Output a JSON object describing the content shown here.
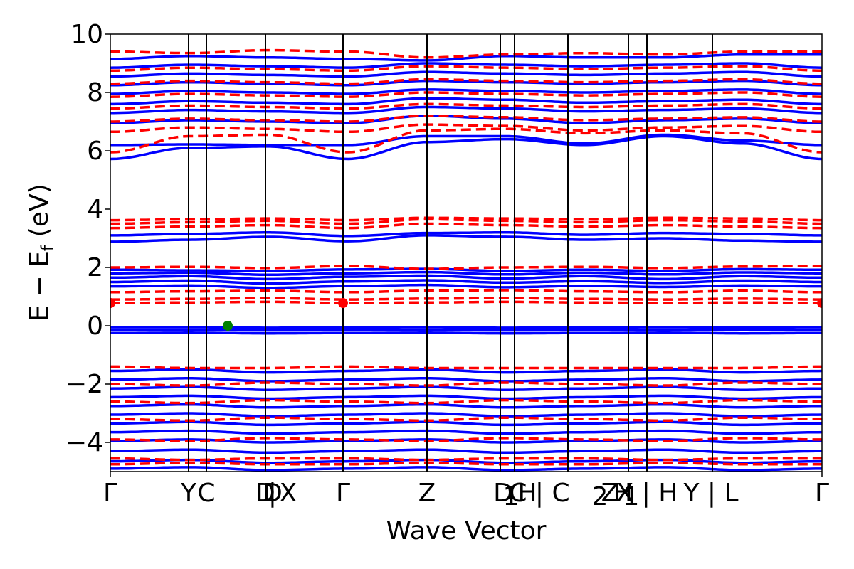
{
  "chart_data": {
    "type": "line",
    "xlabel": "Wave Vector",
    "ylabel_main": "E − E",
    "ylabel_sub": "f",
    "ylabel_tail": " (eV)",
    "ylim": [
      -5,
      10
    ],
    "yticks": [
      -4,
      -2,
      0,
      2,
      4,
      6,
      8,
      10
    ],
    "ytick_labels": [
      "−4",
      "−2",
      "0",
      "2",
      "4",
      "6",
      "8",
      "10"
    ],
    "xlim": [
      0,
      100
    ],
    "kpoint_labels": [
      {
        "x": 0.0,
        "text": "Γ"
      },
      {
        "x": 11.0,
        "text": "Y"
      },
      {
        "x": 13.5,
        "text": "C"
      },
      {
        "x": 21.8,
        "text": "D"
      },
      {
        "x": 22.8,
        "text": "D"
      },
      {
        "x": 22.8,
        "text": "|"
      },
      {
        "x": 25.0,
        "text": "X"
      },
      {
        "x": 32.7,
        "text": "Γ"
      },
      {
        "x": 44.5,
        "text": "Z"
      },
      {
        "x": 55.2,
        "text": "D"
      },
      {
        "x": 56.3,
        "text": "1"
      },
      {
        "x": 58.6,
        "text": "H"
      },
      {
        "x": 60.3,
        "text": "C | C"
      },
      {
        "x": 68.8,
        "text": "2"
      },
      {
        "x": 70.2,
        "text": "Z"
      },
      {
        "x": 72.0,
        "text": "H"
      },
      {
        "x": 73.2,
        "text": "1"
      },
      {
        "x": 75.4,
        "text": "X | H"
      },
      {
        "x": 84.4,
        "text": "Y | L"
      },
      {
        "x": 100.0,
        "text": "Γ"
      }
    ],
    "kpoint_lines": [
      11.0,
      13.5,
      21.8,
      32.7,
      44.5,
      54.8,
      56.8,
      64.3,
      72.8,
      75.4,
      84.6
    ],
    "series": [
      {
        "color": "#0000ff",
        "style": "solid",
        "bands": [
          [
            -0.05,
            -0.05,
            -0.07,
            -0.06,
            -0.05,
            -0.07,
            -0.06,
            -0.05,
            -0.06,
            -0.05
          ],
          [
            -0.15,
            -0.14,
            -0.16,
            -0.15,
            -0.14,
            -0.16,
            -0.15,
            -0.15,
            -0.14,
            -0.15
          ],
          [
            -0.25,
            -0.24,
            -0.26,
            -0.25,
            -0.24,
            -0.26,
            -0.25,
            -0.24,
            -0.26,
            -0.25
          ],
          [
            1.35,
            1.38,
            1.3,
            1.36,
            1.4,
            1.32,
            1.37,
            1.33,
            1.38,
            1.35
          ],
          [
            1.5,
            1.55,
            1.45,
            1.52,
            1.56,
            1.48,
            1.53,
            1.47,
            1.55,
            1.5
          ],
          [
            1.65,
            1.7,
            1.6,
            1.68,
            1.72,
            1.62,
            1.7,
            1.6,
            1.7,
            1.65
          ],
          [
            1.8,
            1.82,
            1.75,
            1.8,
            1.84,
            1.76,
            1.82,
            1.76,
            1.83,
            1.8
          ],
          [
            1.92,
            1.9,
            1.88,
            1.93,
            1.95,
            1.88,
            1.92,
            1.88,
            1.94,
            1.92
          ],
          [
            2.88,
            2.95,
            3.05,
            2.9,
            3.1,
            3.05,
            2.95,
            3.0,
            2.92,
            2.88
          ],
          [
            3.1,
            3.15,
            3.2,
            3.08,
            3.18,
            3.2,
            3.12,
            3.18,
            3.15,
            3.1
          ],
          [
            5.72,
            6.1,
            6.15,
            5.72,
            6.3,
            6.4,
            6.2,
            6.5,
            6.25,
            5.72
          ],
          [
            6.2,
            6.22,
            6.2,
            6.2,
            6.5,
            6.5,
            6.25,
            6.55,
            6.35,
            6.2
          ],
          [
            6.95,
            7.05,
            7.0,
            6.95,
            7.2,
            7.1,
            6.95,
            7.05,
            7.1,
            6.95
          ],
          [
            7.3,
            7.4,
            7.35,
            7.3,
            7.5,
            7.45,
            7.35,
            7.4,
            7.45,
            7.3
          ],
          [
            7.6,
            7.7,
            7.65,
            7.6,
            7.8,
            7.75,
            7.65,
            7.7,
            7.75,
            7.6
          ],
          [
            7.95,
            8.05,
            8.0,
            7.95,
            8.1,
            8.05,
            8.0,
            8.05,
            8.1,
            7.95
          ],
          [
            8.25,
            8.35,
            8.3,
            8.25,
            8.4,
            8.35,
            8.3,
            8.35,
            8.4,
            8.25
          ],
          [
            8.55,
            8.65,
            8.6,
            8.55,
            8.7,
            8.65,
            8.6,
            8.65,
            8.7,
            8.55
          ],
          [
            8.85,
            8.95,
            8.9,
            8.85,
            9.0,
            8.95,
            8.9,
            8.95,
            9.0,
            8.85
          ],
          [
            9.15,
            9.25,
            9.2,
            9.15,
            9.1,
            9.25,
            9.2,
            9.2,
            9.3,
            9.3
          ],
          [
            -1.55,
            -1.5,
            -1.6,
            -1.55,
            -1.5,
            -1.6,
            -1.55,
            -1.5,
            -1.6,
            -1.55
          ],
          [
            -1.85,
            -1.8,
            -1.9,
            -1.85,
            -1.8,
            -1.9,
            -1.85,
            -1.8,
            -1.9,
            -1.85
          ],
          [
            -2.15,
            -2.1,
            -2.2,
            -2.15,
            -2.1,
            -2.2,
            -2.15,
            -2.1,
            -2.2,
            -2.15
          ],
          [
            -2.45,
            -2.4,
            -2.5,
            -2.45,
            -2.4,
            -2.5,
            -2.45,
            -2.4,
            -2.5,
            -2.45
          ],
          [
            -2.75,
            -2.7,
            -2.8,
            -2.75,
            -2.7,
            -2.8,
            -2.75,
            -2.7,
            -2.8,
            -2.75
          ],
          [
            -3.05,
            -3.0,
            -3.1,
            -3.05,
            -3.0,
            -3.1,
            -3.05,
            -3.0,
            -3.1,
            -3.05
          ],
          [
            -3.35,
            -3.3,
            -3.4,
            -3.35,
            -3.3,
            -3.4,
            -3.35,
            -3.3,
            -3.4,
            -3.35
          ],
          [
            -3.65,
            -3.6,
            -3.7,
            -3.65,
            -3.6,
            -3.7,
            -3.65,
            -3.6,
            -3.7,
            -3.65
          ],
          [
            -3.95,
            -3.9,
            -4.0,
            -3.95,
            -3.9,
            -4.0,
            -3.95,
            -3.9,
            -4.0,
            -3.95
          ],
          [
            -4.3,
            -4.25,
            -4.35,
            -4.3,
            -4.25,
            -4.35,
            -4.3,
            -4.25,
            -4.35,
            -4.3
          ],
          [
            -4.65,
            -4.6,
            -4.7,
            -4.65,
            -4.6,
            -4.7,
            -4.65,
            -4.6,
            -4.7,
            -4.65
          ],
          [
            -4.9,
            -4.85,
            -4.95,
            -4.9,
            -4.85,
            -4.95,
            -4.9,
            -4.85,
            -4.95,
            -4.9
          ]
        ]
      },
      {
        "color": "#ff0000",
        "style": "dashed",
        "bands": [
          [
            0.78,
            0.8,
            0.82,
            0.78,
            0.8,
            0.82,
            0.8,
            0.78,
            0.8,
            0.78
          ],
          [
            0.9,
            0.92,
            0.95,
            0.9,
            0.93,
            0.95,
            0.92,
            0.9,
            0.93,
            0.9
          ],
          [
            1.15,
            1.18,
            1.2,
            1.15,
            1.2,
            1.22,
            1.18,
            1.15,
            1.2,
            1.15
          ],
          [
            2.0,
            2.02,
            1.98,
            2.05,
            1.95,
            2.0,
            2.02,
            1.98,
            2.03,
            2.05
          ],
          [
            3.35,
            3.4,
            3.45,
            3.35,
            3.5,
            3.45,
            3.4,
            3.45,
            3.4,
            3.35
          ],
          [
            3.5,
            3.55,
            3.6,
            3.5,
            3.65,
            3.6,
            3.55,
            3.62,
            3.58,
            3.5
          ],
          [
            3.62,
            3.65,
            3.68,
            3.62,
            3.7,
            3.68,
            3.65,
            3.7,
            3.68,
            3.62
          ],
          [
            5.95,
            6.5,
            6.55,
            5.95,
            6.7,
            6.75,
            6.6,
            6.7,
            6.6,
            5.95
          ],
          [
            6.65,
            6.8,
            6.75,
            6.65,
            6.9,
            6.85,
            6.7,
            6.8,
            6.85,
            6.65
          ],
          [
            7.0,
            7.1,
            7.05,
            7.0,
            7.2,
            7.15,
            7.05,
            7.1,
            7.15,
            7.0
          ],
          [
            7.45,
            7.55,
            7.5,
            7.45,
            7.6,
            7.55,
            7.5,
            7.55,
            7.6,
            7.45
          ],
          [
            7.85,
            7.95,
            7.9,
            7.85,
            8.0,
            7.95,
            7.9,
            7.95,
            8.0,
            7.85
          ],
          [
            8.3,
            8.4,
            8.35,
            8.3,
            8.45,
            8.4,
            8.35,
            8.4,
            8.45,
            8.3
          ],
          [
            8.75,
            8.85,
            8.8,
            8.75,
            8.9,
            8.85,
            8.8,
            8.85,
            8.9,
            8.75
          ],
          [
            9.4,
            9.35,
            9.45,
            9.4,
            9.2,
            9.3,
            9.35,
            9.3,
            9.4,
            9.4
          ],
          [
            -1.4,
            -1.45,
            -1.45,
            -1.4,
            -1.45,
            -1.45,
            -1.45,
            -1.45,
            -1.45,
            -1.4
          ],
          [
            -2.0,
            -2.05,
            -1.95,
            -2.0,
            -2.05,
            -1.95,
            -2.0,
            -2.05,
            -1.95,
            -2.0
          ],
          [
            -2.6,
            -2.65,
            -2.55,
            -2.6,
            -2.65,
            -2.55,
            -2.6,
            -2.65,
            -2.55,
            -2.6
          ],
          [
            -3.2,
            -3.25,
            -3.15,
            -3.2,
            -3.25,
            -3.15,
            -3.2,
            -3.25,
            -3.15,
            -3.2
          ],
          [
            -3.9,
            -3.95,
            -3.85,
            -3.9,
            -3.95,
            -3.85,
            -3.9,
            -3.95,
            -3.85,
            -3.9
          ],
          [
            -4.55,
            -4.6,
            -4.55,
            -4.55,
            -4.6,
            -4.55,
            -4.55,
            -4.6,
            -4.55,
            -4.55
          ],
          [
            -4.75,
            -4.7,
            -4.75,
            -4.75,
            -4.7,
            -4.75,
            -4.75,
            -4.7,
            -4.75,
            -4.75
          ]
        ]
      }
    ],
    "markers": [
      {
        "x": 0.0,
        "y": 0.78,
        "color": "#ff0000"
      },
      {
        "x": 32.7,
        "y": 0.78,
        "color": "#ff0000"
      },
      {
        "x": 100.0,
        "y": 0.78,
        "color": "#ff0000"
      },
      {
        "x": 16.5,
        "y": 0.0,
        "color": "#008000"
      }
    ]
  }
}
